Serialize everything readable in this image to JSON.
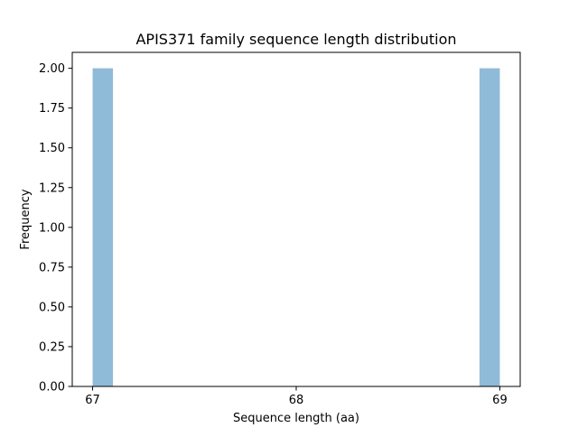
{
  "chart_data": {
    "type": "bar",
    "title": "APIS371 family sequence length distribution",
    "xlabel": "Sequence length (aa)",
    "ylabel": "Frequency",
    "histogram": {
      "bin_count": 20,
      "range": [
        67,
        69
      ],
      "bins": [
        {
          "x0": 67.0,
          "x1": 67.1,
          "count": 2
        },
        {
          "x0": 68.9,
          "x1": 69.0,
          "count": 2
        }
      ]
    },
    "x_ticks": [
      67,
      68,
      69
    ],
    "x_tick_labels": [
      "67",
      "68",
      "69"
    ],
    "y_ticks": [
      0,
      0.25,
      0.5,
      0.75,
      1.0,
      1.25,
      1.5,
      1.75,
      2.0
    ],
    "y_tick_labels": [
      "0.00",
      "0.25",
      "0.50",
      "0.75",
      "1.00",
      "1.25",
      "1.50",
      "1.75",
      "2.00"
    ],
    "xlim": [
      66.9,
      69.1
    ],
    "ylim": [
      0,
      2.1
    ],
    "grid": false,
    "bar_color": "#1f77b4",
    "bar_opacity": 0.5
  }
}
